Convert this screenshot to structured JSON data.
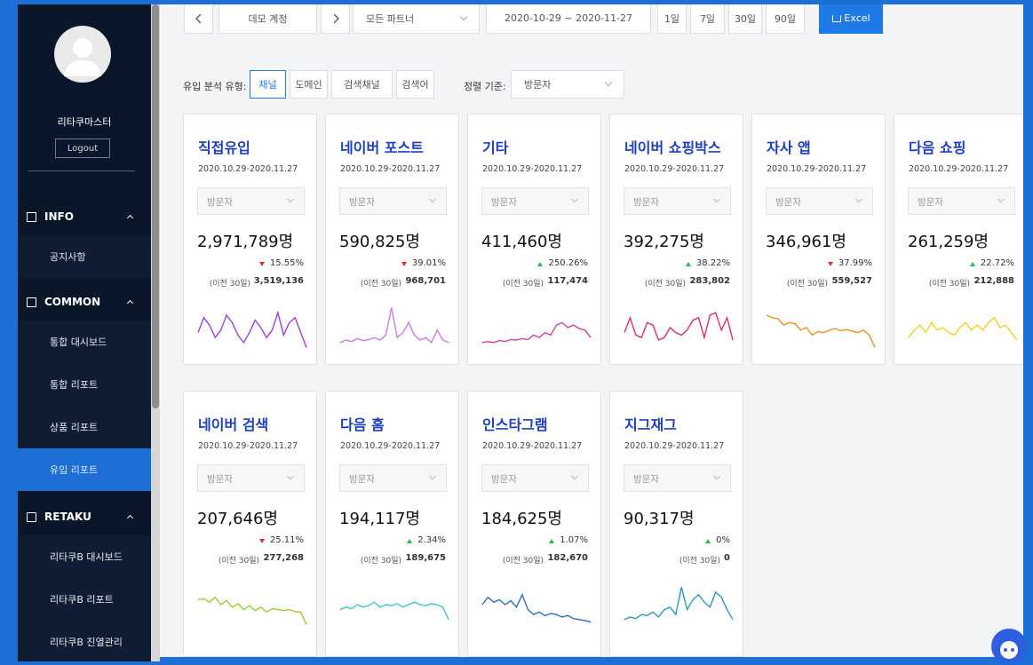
{
  "sidebar": {
    "user": "리타쿠마스터",
    "logout": "Logout",
    "sections": [
      {
        "title": "INFO",
        "items": [
          "공지사항"
        ]
      },
      {
        "title": "COMMON",
        "items": [
          "통합 대시보드",
          "통합 리포트",
          "상품 리포트",
          "유입 리포트"
        ]
      },
      {
        "title": "RETAKU",
        "items": [
          "리타쿠B 대시보드",
          "리타쿠B 리포트",
          "리타쿠B 진열관리"
        ]
      }
    ],
    "active_section": 1,
    "active_item": 3
  },
  "toolbar": {
    "account": "데모 계정",
    "partner": "모든 파트너",
    "date_range": "2020-10-29  ~  2020-11-27",
    "periods": [
      "1일",
      "7일",
      "30일",
      "90일"
    ],
    "excel": "Excel"
  },
  "filters": {
    "type_label": "유입 분석 유형:",
    "types": [
      "채널",
      "도메인",
      "검색채널",
      "검색어"
    ],
    "active_type": 0,
    "sort_label": "정렬 기준:",
    "sort_value": "방문자"
  },
  "cards": [
    {
      "title": "직접유입",
      "date": "2020.10.29-2020.11.27",
      "metric": "방문자",
      "value": "2,971,789명",
      "direction": "down",
      "change": "15.55%",
      "prev_label": "(이전 30일)",
      "prev_value": "3,519,136",
      "color": "#9b3fe0",
      "trend": [
        40,
        70,
        55,
        30,
        45,
        75,
        60,
        35,
        20,
        40,
        65,
        50,
        30,
        45,
        80,
        35,
        60,
        70,
        40,
        10
      ]
    },
    {
      "title": "네이버 포스트",
      "date": "2020.10.29-2020.11.27",
      "metric": "방문자",
      "value": "590,825명",
      "direction": "down",
      "change": "39.01%",
      "prev_label": "(이전 30일)",
      "prev_value": "968,701",
      "color": "#c77ce6",
      "trend": [
        20,
        25,
        22,
        28,
        24,
        26,
        30,
        25,
        35,
        90,
        30,
        40,
        60,
        35,
        25,
        30,
        20,
        45,
        25,
        20
      ]
    },
    {
      "title": "기타",
      "date": "2020.10.29-2020.11.27",
      "metric": "방문자",
      "value": "411,460명",
      "direction": "up",
      "change": "250.26%",
      "prev_label": "(이전 30일)",
      "prev_value": "117,474",
      "color": "#d23fa0",
      "trend": [
        20,
        22,
        20,
        24,
        22,
        26,
        25,
        28,
        26,
        35,
        30,
        40,
        35,
        55,
        60,
        50,
        55,
        48,
        45,
        30
      ]
    },
    {
      "title": "네이버 쇼핑박스",
      "date": "2020.10.29-2020.11.27",
      "metric": "방문자",
      "value": "392,275명",
      "direction": "up",
      "change": "38.22%",
      "prev_label": "(이전 30일)",
      "prev_value": "283,802",
      "color": "#e0305a",
      "trend": [
        40,
        70,
        35,
        30,
        60,
        55,
        25,
        30,
        50,
        40,
        35,
        45,
        65,
        70,
        30,
        75,
        80,
        45,
        70,
        25
      ]
    },
    {
      "title": "자사 앱",
      "date": "2020.10.29-2020.11.27",
      "metric": "방문자",
      "value": "346,961명",
      "direction": "down",
      "change": "37.99%",
      "prev_label": "(이전 30일)",
      "prev_value": "559,527",
      "color": "#f09020",
      "trend": [
        75,
        70,
        68,
        55,
        60,
        58,
        45,
        50,
        35,
        42,
        40,
        45,
        48,
        44,
        46,
        43,
        40,
        45,
        35,
        10
      ]
    },
    {
      "title": "다음 쇼핑",
      "date": "2020.10.29-2020.11.27",
      "metric": "방문자",
      "value": "261,259명",
      "direction": "up",
      "change": "22.72%",
      "prev_label": "(이전 30일)",
      "prev_value": "212,888",
      "color": "#f0d030",
      "trend": [
        30,
        45,
        55,
        40,
        60,
        45,
        50,
        40,
        35,
        50,
        60,
        45,
        55,
        45,
        60,
        70,
        50,
        55,
        40,
        25
      ]
    },
    {
      "title": "네이버 검색",
      "date": "2020.10.29-2020.11.27",
      "metric": "방문자",
      "value": "207,646명",
      "direction": "down",
      "change": "25.11%",
      "prev_label": "(이전 30일)",
      "prev_value": "277,268",
      "color": "#9acd32",
      "trend": [
        60,
        62,
        55,
        65,
        50,
        58,
        45,
        52,
        40,
        48,
        38,
        45,
        35,
        42,
        40,
        38,
        40,
        36,
        35,
        10
      ]
    },
    {
      "title": "다음 홈",
      "date": "2020.10.29-2020.11.27",
      "metric": "방문자",
      "value": "194,117명",
      "direction": "up",
      "change": "2.34%",
      "prev_label": "(이전 30일)",
      "prev_value": "189,675",
      "color": "#40c8c8",
      "trend": [
        40,
        45,
        42,
        50,
        45,
        48,
        55,
        45,
        50,
        48,
        52,
        45,
        50,
        55,
        50,
        48,
        52,
        50,
        45,
        20
      ]
    },
    {
      "title": "인스타그램",
      "date": "2020.10.29-2020.11.27",
      "metric": "방문자",
      "value": "184,625명",
      "direction": "up",
      "change": "1.07%",
      "prev_label": "(이전 30일)",
      "prev_value": "182,670",
      "color": "#2a70c8",
      "trend": [
        50,
        65,
        55,
        60,
        50,
        58,
        45,
        70,
        40,
        30,
        35,
        28,
        32,
        30,
        25,
        28,
        22,
        20,
        18,
        15
      ]
    },
    {
      "title": "지그재그",
      "date": "2020.10.29-2020.11.27",
      "metric": "방문자",
      "value": "90,317명",
      "direction": "up",
      "change": "0%",
      "prev_label": "(이전 30일)",
      "prev_value": "0",
      "color": "#2a9ab8",
      "trend": [
        20,
        25,
        22,
        30,
        28,
        35,
        25,
        40,
        45,
        30,
        85,
        40,
        60,
        70,
        55,
        45,
        75,
        65,
        40,
        20
      ]
    }
  ]
}
